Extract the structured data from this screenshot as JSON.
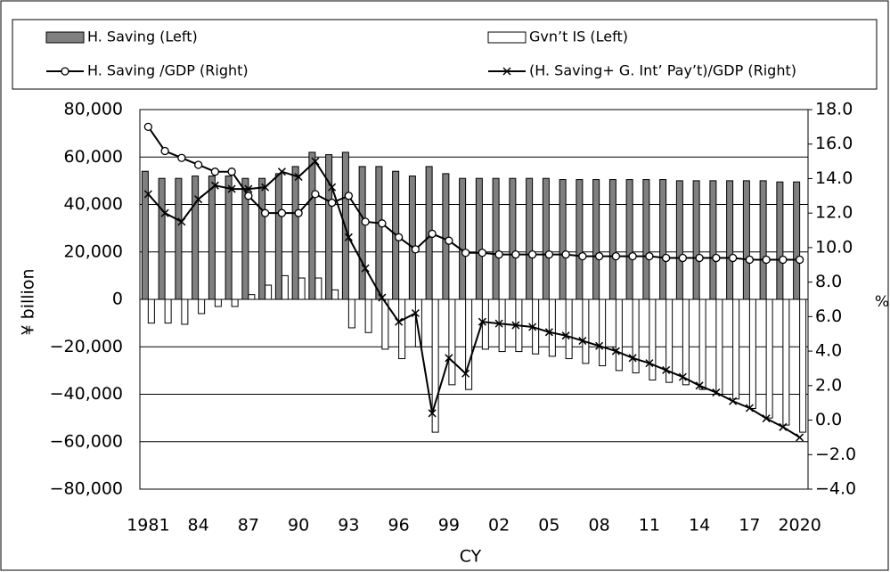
{
  "chart_data": {
    "type": "bar",
    "categories": [
      "1981",
      null,
      null,
      "84",
      null,
      null,
      "87",
      null,
      null,
      "90",
      null,
      null,
      "93",
      null,
      null,
      "96",
      null,
      null,
      "99",
      null,
      null,
      "02",
      null,
      null,
      "05",
      null,
      null,
      "08",
      null,
      null,
      "11",
      null,
      null,
      "14",
      null,
      null,
      "17",
      null,
      null,
      "2020"
    ],
    "x_label": "CY",
    "y_label": "¥ billion",
    "y2_label": "%",
    "ylim": [
      -80000,
      80000
    ],
    "yticks": [
      {
        "value": -80000,
        "label": "−80,000"
      },
      {
        "value": -60000,
        "label": "−60,000"
      },
      {
        "value": -40000,
        "label": "−40,000"
      },
      {
        "value": -20000,
        "label": "−20,000"
      },
      0,
      {
        "value": 20000,
        "label": "20,000"
      },
      {
        "value": 40000,
        "label": "40,000"
      },
      {
        "value": 60000,
        "label": "60,000"
      },
      {
        "value": 80000,
        "label": "80,000"
      }
    ],
    "y2lim": [
      -4,
      18
    ],
    "y2ticks": [
      {
        "value": -4,
        "label": "−4.0"
      },
      {
        "value": -2,
        "label": "−2.0"
      },
      {
        "value": 0,
        "label": "0.0"
      },
      {
        "value": 2,
        "label": "2.0"
      },
      {
        "value": 4,
        "label": "4.0"
      },
      {
        "value": 6,
        "label": "6.0"
      },
      {
        "value": 8,
        "label": "8.0"
      },
      {
        "value": 10,
        "label": "10.0"
      },
      {
        "value": 12,
        "label": "12.0"
      },
      {
        "value": 14,
        "label": "14.0"
      },
      {
        "value": 16,
        "label": "16.0"
      },
      {
        "value": 18,
        "label": "18.0"
      }
    ],
    "negative_tick_color": "#ff0000",
    "grid": true,
    "series": [
      {
        "name": "H. Saving (Left)",
        "type": "bar",
        "color": "#808080",
        "values": [
          54000,
          51000,
          51000,
          52000,
          52000,
          52000,
          51000,
          51000,
          53000,
          56000,
          62000,
          61000,
          62000,
          56000,
          56000,
          54000,
          52000,
          56000,
          53000,
          51000,
          51000,
          51000,
          51000,
          51000,
          51000,
          50500,
          50500,
          50500,
          50500,
          50500,
          50500,
          50500,
          50000,
          50000,
          50000,
          50000,
          50000,
          50000,
          49500,
          49500
        ]
      },
      {
        "name": "Gvn’t IS (Left)",
        "type": "bar",
        "color": "#ffffff",
        "values": [
          -10000,
          -10000,
          -10500,
          -6000,
          -3000,
          -3000,
          2000,
          6000,
          10000,
          9000,
          9000,
          4000,
          -12000,
          -14000,
          -21000,
          -25000,
          -20000,
          -56000,
          -36000,
          -38000,
          -21000,
          -22000,
          -22000,
          -23000,
          -24000,
          -25000,
          -27000,
          -28000,
          -30000,
          -31000,
          -34000,
          -35000,
          -36000,
          -38000,
          -40000,
          -42000,
          -46000,
          -50000,
          -53000,
          -56000
        ]
      },
      {
        "name": "H. Saving /GDP (Right)",
        "type": "line",
        "axis": "y2",
        "marker": "circle",
        "color": "#000000",
        "values": [
          17.0,
          15.6,
          15.2,
          14.8,
          14.4,
          14.4,
          13.0,
          12.0,
          12.0,
          12.0,
          13.1,
          12.6,
          13.0,
          11.5,
          11.4,
          10.6,
          9.9,
          10.8,
          10.4,
          9.7,
          9.7,
          9.6,
          9.6,
          9.6,
          9.6,
          9.6,
          9.5,
          9.5,
          9.5,
          9.5,
          9.5,
          9.4,
          9.4,
          9.4,
          9.4,
          9.4,
          9.3,
          9.3,
          9.3,
          9.3
        ]
      },
      {
        "name": "(H. Saving+ G. Int’ Pay’t)/GDP (Right)",
        "type": "line",
        "axis": "y2",
        "marker": "x",
        "color": "#000000",
        "values": [
          13.1,
          12.0,
          11.5,
          12.8,
          13.6,
          13.4,
          13.4,
          13.5,
          14.4,
          14.1,
          15.0,
          13.5,
          10.6,
          8.8,
          7.1,
          5.7,
          6.2,
          0.4,
          3.6,
          2.7,
          5.7,
          5.6,
          5.5,
          5.4,
          5.1,
          4.9,
          4.6,
          4.3,
          4.0,
          3.6,
          3.3,
          2.9,
          2.5,
          2.0,
          1.6,
          1.1,
          0.7,
          0.1,
          -0.4,
          -1.0
        ]
      }
    ]
  }
}
